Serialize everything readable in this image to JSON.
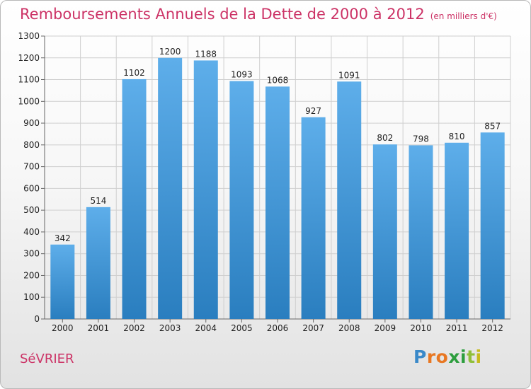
{
  "header": {
    "title": "Remboursements Annuels de la Dette de 2000 à 2012",
    "unit": "(en milliers d'€)"
  },
  "footer": {
    "commune": "SéVRIER",
    "logo": [
      "P",
      "r",
      "o",
      "x",
      "i",
      "t",
      "i"
    ]
  },
  "colors": {
    "title": "#cc3366",
    "bar_light": "#5eaeea",
    "bar_dark": "#2a7ebf",
    "grid": "#cfcfcf"
  },
  "chart_data": {
    "type": "bar",
    "title": "Remboursements Annuels de la Dette de 2000 à 2012",
    "xlabel": "",
    "ylabel": "",
    "categories": [
      "2000",
      "2001",
      "2002",
      "2003",
      "2004",
      "2005",
      "2006",
      "2007",
      "2008",
      "2009",
      "2010",
      "2011",
      "2012"
    ],
    "values": [
      342,
      514,
      1102,
      1200,
      1188,
      1093,
      1068,
      927,
      1091,
      802,
      798,
      810,
      857
    ],
    "ylim": [
      0,
      1300
    ],
    "yticks": [
      0,
      100,
      200,
      300,
      400,
      500,
      600,
      700,
      800,
      900,
      1000,
      1100,
      1200,
      1300
    ],
    "grid": true,
    "legend": "none"
  }
}
